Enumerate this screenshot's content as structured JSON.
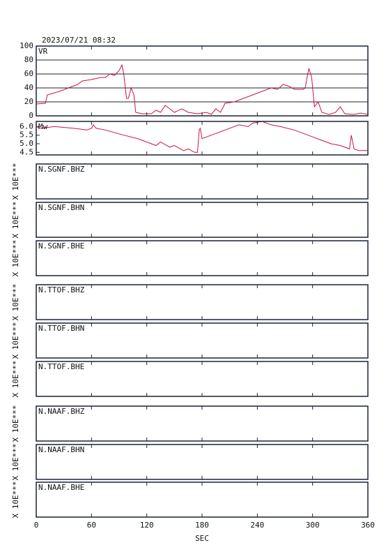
{
  "header": "2023/07/21 08:32",
  "x_axis": {
    "label": "SEC",
    "xlim": [
      0,
      360
    ],
    "xticks": [
      0,
      60,
      120,
      180,
      240,
      300,
      360
    ]
  },
  "chart_data": [
    {
      "type": "line",
      "title": "VR",
      "color": "#cc1144",
      "grid": true,
      "ylim": [
        0,
        100
      ],
      "yticks": [
        0,
        20,
        40,
        60,
        80,
        100
      ],
      "x": [
        0,
        10,
        12,
        25,
        35,
        45,
        50,
        60,
        70,
        75,
        80,
        85,
        90,
        93,
        95,
        98,
        100,
        103,
        106,
        108,
        115,
        125,
        130,
        135,
        140,
        145,
        150,
        158,
        165,
        175,
        185,
        190,
        195,
        200,
        205,
        215,
        225,
        235,
        245,
        255,
        262,
        268,
        275,
        280,
        290,
        292,
        294,
        296,
        299,
        302,
        306,
        310,
        318,
        325,
        330,
        335,
        345,
        352,
        360
      ],
      "values": [
        17,
        18,
        30,
        35,
        40,
        45,
        50,
        52,
        55,
        55,
        60,
        58,
        65,
        73,
        60,
        25,
        25,
        40,
        30,
        5,
        3,
        3,
        8,
        5,
        15,
        10,
        5,
        10,
        5,
        3,
        5,
        2,
        10,
        5,
        18,
        20,
        25,
        30,
        35,
        40,
        38,
        45,
        42,
        38,
        38,
        40,
        55,
        68,
        55,
        13,
        20,
        5,
        2,
        5,
        13,
        3,
        2,
        4,
        2
      ]
    },
    {
      "type": "line",
      "title": "Mw",
      "color": "#cc1144",
      "grid": false,
      "ylim": [
        4.35,
        6.3
      ],
      "yticks": [
        4.5,
        {
          "value": 5,
          "label": "5.0"
        },
        5.5,
        {
          "value": 6,
          "label": "6.0"
        }
      ],
      "x": [
        0,
        5,
        20,
        40,
        55,
        60,
        62,
        65,
        75,
        95,
        110,
        120,
        130,
        135,
        145,
        150,
        160,
        165,
        172,
        175,
        177,
        178,
        180,
        190,
        200,
        210,
        220,
        230,
        235,
        245,
        255,
        265,
        280,
        290,
        300,
        310,
        320,
        330,
        340,
        342,
        345,
        350,
        360
      ],
      "values": [
        6.0,
        5.9,
        6.0,
        5.9,
        5.8,
        5.9,
        6.1,
        5.9,
        5.8,
        5.5,
        5.3,
        5.1,
        4.9,
        5.1,
        4.8,
        4.9,
        4.6,
        4.7,
        4.5,
        4.5,
        5.8,
        5.9,
        5.3,
        5.5,
        5.7,
        5.9,
        6.1,
        6.0,
        6.2,
        6.3,
        6.1,
        6.0,
        5.8,
        5.6,
        5.4,
        5.2,
        5.0,
        4.9,
        4.7,
        5.5,
        4.7,
        4.6,
        4.6
      ]
    },
    {
      "type": "empty",
      "title": "N.SGNF.BHZ",
      "ylabel": "X 10E***"
    },
    {
      "type": "empty",
      "title": "N.SGNF.BHN",
      "ylabel": "X 10E***"
    },
    {
      "type": "empty",
      "title": "N.SGNF.BHE",
      "ylabel": "X 10E***"
    },
    {
      "type": "empty",
      "title": "N.TTOF.BHZ",
      "ylabel": "X 10E***"
    },
    {
      "type": "empty",
      "title": "N.TTOF.BHN",
      "ylabel": "X 10E***"
    },
    {
      "type": "empty",
      "title": "N.TTOF.BHE",
      "ylabel": "X 10E***"
    },
    {
      "type": "empty",
      "title": "N.NAAF.BHZ",
      "ylabel": "X 10E***"
    },
    {
      "type": "empty",
      "title": "N.NAAF.BHN",
      "ylabel": "X 10E***"
    },
    {
      "type": "empty",
      "title": "N.NAAF.BHE",
      "ylabel": "X 10E***"
    }
  ]
}
